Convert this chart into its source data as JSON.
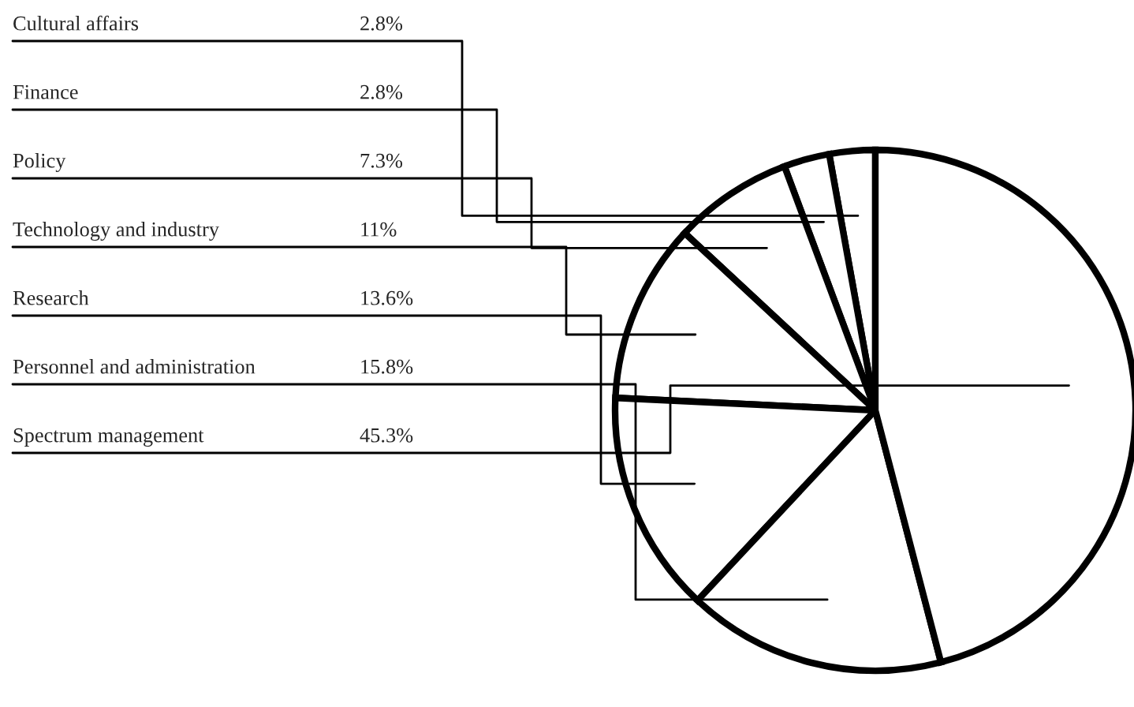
{
  "chart_data": {
    "type": "pie",
    "categories": [
      "Cultural affairs",
      "Finance",
      "Policy",
      "Technology and industry",
      "Research",
      "Personnel and administration",
      "Spectrum management"
    ],
    "values": [
      2.8,
      2.8,
      7.3,
      11,
      13.6,
      15.8,
      45.3
    ],
    "value_labels": [
      "2.8%",
      "2.8%",
      "7.3%",
      "11%",
      "13.6%",
      "15.8%",
      "45.3%"
    ],
    "colors": [
      "#ffffff",
      "#ffffff",
      "#ffffff",
      "#ffffff",
      "#ffffff",
      "#ffffff",
      "#ffffff"
    ]
  }
}
